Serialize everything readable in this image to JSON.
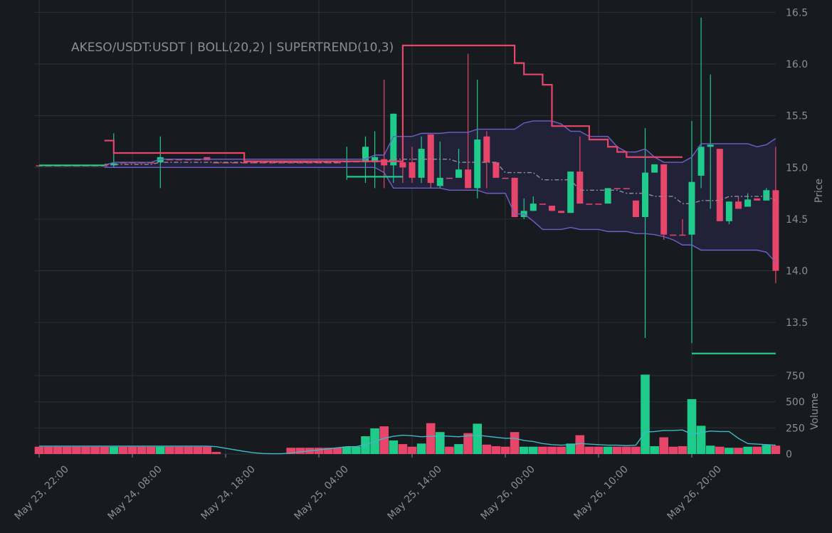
{
  "chart_data": {
    "type": "candlestick",
    "title": "AKESO/USDT:USDT | BOLL(20,2) | SUPERTREND(10,3)",
    "ylabel": "Price",
    "categories": [
      "May 23, 22:00",
      null,
      null,
      null,
      null,
      null,
      null,
      null,
      null,
      null,
      "May 24, 08:00",
      null,
      null,
      null,
      null,
      null,
      null,
      null,
      null,
      null,
      "May 24, 18:00",
      null,
      null,
      null,
      null,
      null,
      null,
      null,
      null,
      null,
      "May 25, 04:00",
      null,
      null,
      null,
      null,
      null,
      null,
      null,
      null,
      null,
      "May 25, 14:00",
      null,
      null,
      null,
      null,
      null,
      null,
      null,
      null,
      null,
      "May 26, 00:00",
      null,
      null,
      null,
      null,
      null,
      null,
      null,
      null,
      null,
      "May 26, 10:00",
      null,
      null,
      null,
      null,
      null,
      null,
      null,
      null,
      null,
      "May 26, 20:00",
      null,
      null,
      null,
      null,
      null,
      null,
      null,
      null,
      null
    ],
    "open": [
      15.02,
      15.02,
      15.02,
      15.02,
      15.02,
      15.02,
      15.02,
      15.02,
      15.02,
      15.05,
      15.05,
      15.05,
      15.05,
      15.05,
      15.08,
      15.08,
      15.08,
      15.08,
      15.1,
      15.05,
      15.05,
      15.05,
      15.05,
      15.05,
      15.05,
      15.05,
      15.05,
      15.05,
      15.05,
      15.05,
      15.05,
      15.05,
      15.05,
      15.05,
      15.05,
      15.05,
      15.05,
      15.08,
      15.02,
      15.05,
      15.05,
      14.9,
      15.32,
      14.82,
      14.9,
      14.9,
      14.98,
      14.8,
      15.3,
      15.05,
      14.9,
      14.9,
      14.52,
      14.58,
      14.65,
      14.63,
      14.58,
      14.56,
      14.96,
      14.65,
      14.65,
      14.65,
      14.8,
      14.8,
      14.68,
      14.52,
      14.95,
      15.03,
      14.35,
      14.35,
      14.35,
      14.92,
      15.2,
      15.18,
      14.48,
      14.67,
      14.62,
      14.7,
      14.68,
      14.78
    ],
    "high": [
      15.02,
      15.02,
      15.02,
      15.02,
      15.02,
      15.02,
      15.02,
      15.02,
      15.33,
      15.05,
      15.05,
      15.05,
      15.05,
      15.3,
      15.08,
      15.08,
      15.08,
      15.08,
      15.1,
      15.05,
      15.05,
      15.05,
      15.05,
      15.05,
      15.05,
      15.05,
      15.05,
      15.05,
      15.05,
      15.05,
      15.05,
      15.05,
      15.05,
      15.2,
      15.06,
      15.3,
      15.35,
      15.85,
      15.52,
      15.35,
      15.2,
      15.3,
      15.32,
      15.25,
      14.9,
      15.18,
      16.1,
      15.85,
      15.35,
      15.05,
      14.9,
      14.9,
      14.7,
      14.72,
      14.65,
      14.63,
      14.58,
      14.96,
      15.3,
      14.65,
      14.65,
      14.8,
      14.8,
      14.8,
      14.68,
      15.38,
      15.03,
      15.03,
      14.35,
      14.5,
      15.45,
      16.45,
      15.9,
      15.18,
      14.67,
      14.72,
      14.75,
      14.7,
      14.8,
      15.2
    ],
    "low": [
      15.02,
      15.02,
      15.02,
      15.02,
      15.02,
      15.02,
      15.02,
      15.02,
      15.0,
      15.05,
      15.05,
      15.05,
      15.05,
      14.8,
      15.08,
      15.08,
      15.08,
      15.08,
      15.07,
      15.05,
      15.05,
      15.05,
      15.05,
      15.05,
      15.05,
      15.05,
      15.05,
      15.05,
      15.05,
      15.05,
      15.05,
      15.05,
      15.05,
      14.88,
      15.05,
      14.85,
      14.8,
      14.8,
      14.85,
      14.85,
      14.85,
      14.85,
      14.8,
      14.8,
      14.9,
      14.9,
      14.8,
      14.7,
      14.8,
      14.9,
      14.9,
      14.52,
      14.5,
      14.58,
      14.65,
      14.58,
      14.56,
      14.56,
      14.65,
      14.65,
      14.65,
      14.65,
      14.8,
      14.8,
      14.52,
      13.35,
      14.95,
      14.3,
      14.34,
      14.35,
      13.3,
      14.8,
      14.6,
      14.48,
      14.45,
      14.6,
      14.62,
      14.68,
      14.68,
      13.88
    ],
    "close": [
      15.02,
      15.02,
      15.02,
      15.02,
      15.02,
      15.02,
      15.02,
      15.02,
      15.04,
      15.05,
      15.05,
      15.05,
      15.05,
      15.1,
      15.08,
      15.08,
      15.08,
      15.08,
      15.07,
      15.05,
      15.05,
      15.05,
      15.05,
      15.05,
      15.05,
      15.05,
      15.05,
      15.05,
      15.05,
      15.05,
      15.05,
      15.05,
      15.05,
      15.06,
      15.06,
      15.2,
      15.1,
      15.02,
      15.52,
      15.0,
      14.9,
      15.18,
      14.85,
      14.9,
      14.9,
      14.98,
      14.8,
      15.27,
      15.05,
      14.9,
      14.9,
      14.52,
      14.58,
      14.65,
      14.65,
      14.58,
      14.56,
      14.96,
      14.65,
      14.65,
      14.65,
      14.8,
      14.8,
      14.8,
      14.52,
      14.95,
      15.03,
      14.35,
      14.34,
      14.35,
      14.86,
      15.2,
      15.22,
      14.48,
      14.67,
      14.6,
      14.69,
      14.68,
      14.78,
      14.0
    ],
    "up_color": "#1ecb8b",
    "down_color": "#e8456a",
    "lines": [
      {
        "color": "#6f5fc8",
        "style": "solid",
        "values": [
          null,
          null,
          null,
          null,
          null,
          null,
          null,
          15.02,
          15.05,
          15.05,
          15.05,
          15.05,
          15.05,
          15.08,
          15.08,
          15.08,
          15.08,
          15.08,
          15.08,
          15.08,
          15.08,
          15.08,
          15.08,
          15.08,
          15.08,
          15.08,
          15.08,
          15.08,
          15.08,
          15.08,
          15.08,
          15.08,
          15.08,
          15.08,
          15.08,
          15.08,
          15.12,
          15.12,
          15.3,
          15.3,
          15.3,
          15.33,
          15.33,
          15.33,
          15.34,
          15.34,
          15.34,
          15.37,
          15.37,
          15.37,
          15.37,
          15.37,
          15.43,
          15.45,
          15.45,
          15.45,
          15.42,
          15.35,
          15.35,
          15.3,
          15.3,
          15.3,
          15.2,
          15.15,
          15.15,
          15.18,
          15.1,
          15.05,
          15.05,
          15.05,
          15.1,
          15.23,
          15.23,
          15.23,
          15.23,
          15.23,
          15.23,
          15.2,
          15.22,
          15.28
        ]
      },
      {
        "color": "#8d8f9c",
        "style": "dash",
        "values": [
          null,
          null,
          null,
          null,
          null,
          null,
          null,
          15.03,
          15.03,
          15.03,
          15.03,
          15.03,
          15.03,
          15.05,
          15.05,
          15.05,
          15.05,
          15.05,
          15.05,
          15.05,
          15.05,
          15.05,
          15.05,
          15.05,
          15.05,
          15.05,
          15.05,
          15.05,
          15.05,
          15.05,
          15.05,
          15.05,
          15.05,
          15.06,
          15.06,
          15.06,
          15.06,
          15.06,
          15.08,
          15.08,
          15.08,
          15.08,
          15.08,
          15.08,
          15.08,
          15.05,
          15.05,
          15.05,
          15.05,
          15.05,
          14.95,
          14.95,
          14.95,
          14.95,
          14.88,
          14.88,
          14.88,
          14.88,
          14.78,
          14.78,
          14.78,
          14.78,
          14.78,
          14.75,
          14.75,
          14.75,
          14.72,
          14.72,
          14.72,
          14.65,
          14.65,
          14.68,
          14.68,
          14.68,
          14.72,
          14.72,
          14.72,
          14.72,
          14.72,
          14.68
        ]
      },
      {
        "color": "#6f5fc8",
        "style": "solid",
        "values": [
          null,
          null,
          null,
          null,
          null,
          null,
          null,
          15.0,
          15.0,
          15.0,
          15.0,
          15.0,
          15.0,
          15.0,
          15.0,
          15.0,
          15.0,
          15.0,
          15.0,
          15.0,
          15.0,
          15.0,
          15.0,
          15.0,
          15.0,
          15.0,
          15.0,
          15.0,
          15.0,
          15.0,
          15.0,
          15.0,
          15.0,
          15.0,
          15.0,
          15.0,
          15.0,
          14.95,
          14.8,
          14.8,
          14.8,
          14.8,
          14.8,
          14.8,
          14.78,
          14.78,
          14.78,
          14.78,
          14.75,
          14.75,
          14.75,
          14.55,
          14.55,
          14.48,
          14.4,
          14.4,
          14.4,
          14.42,
          14.4,
          14.4,
          14.4,
          14.38,
          14.38,
          14.38,
          14.36,
          14.36,
          14.35,
          14.33,
          14.3,
          14.25,
          14.25,
          14.2,
          14.2,
          14.2,
          14.2,
          14.2,
          14.2,
          14.2,
          14.18,
          14.08
        ]
      },
      {
        "color": "#1ecb8b",
        "style": "step",
        "values": [
          15.02,
          15.02,
          15.02,
          15.02,
          15.02,
          15.02,
          15.02,
          15.02,
          null,
          null,
          null,
          null,
          null,
          null,
          null,
          null,
          null,
          null,
          null,
          null,
          null,
          null,
          null,
          null,
          null,
          null,
          null,
          null,
          null,
          null,
          null,
          null,
          null,
          14.91,
          14.91,
          14.91,
          14.91,
          14.91,
          14.91,
          14.91,
          null,
          null,
          null,
          null,
          null,
          null,
          null,
          null,
          null,
          null,
          null,
          null,
          null,
          null,
          null,
          null,
          null,
          null,
          null,
          null,
          null,
          null,
          null,
          null,
          null,
          null,
          null,
          null,
          null,
          null,
          13.2,
          13.2,
          13.2,
          13.2,
          13.2,
          13.2,
          13.2,
          13.2,
          13.2,
          13.2
        ]
      },
      {
        "color": "#e8456a",
        "style": "step",
        "values": [
          null,
          null,
          null,
          null,
          null,
          null,
          null,
          15.26,
          15.14,
          15.14,
          15.14,
          15.14,
          15.14,
          15.14,
          15.14,
          15.14,
          15.14,
          15.14,
          15.14,
          15.14,
          15.14,
          15.14,
          15.06,
          15.06,
          15.06,
          15.06,
          15.06,
          15.06,
          15.06,
          15.06,
          15.06,
          15.06,
          15.06,
          15.06,
          15.06,
          15.06,
          15.06,
          15.06,
          15.06,
          16.18,
          16.18,
          16.18,
          16.18,
          16.18,
          16.18,
          16.18,
          16.18,
          16.18,
          16.18,
          16.18,
          16.18,
          16.01,
          15.9,
          15.9,
          15.8,
          15.4,
          15.4,
          15.4,
          15.4,
          15.27,
          15.27,
          15.2,
          15.15,
          15.1,
          15.1,
          15.1,
          15.1,
          15.1,
          15.1,
          15.1,
          null,
          null,
          null,
          null,
          null,
          null,
          null,
          null,
          null,
          null
        ]
      }
    ],
    "band_fill": "#22233a",
    "ylim": [
      13.04,
      16.62
    ],
    "yticks": [
      {
        "value": 13.5,
        "label": "13.5"
      },
      {
        "value": 14,
        "label": "14.0"
      },
      14.5,
      {
        "value": 15,
        "label": "15.0"
      },
      15.5,
      {
        "value": 16,
        "label": "16.0"
      },
      16.5
    ],
    "grid": true,
    "volume": {
      "ylabel": "Volume",
      "ylim": [
        0,
        790
      ],
      "yticks": [
        0,
        250,
        500,
        750
      ],
      "ma_color": "#3fb9c9",
      "values": [
        70,
        70,
        70,
        70,
        70,
        70,
        70,
        70,
        70,
        70,
        70,
        70,
        70,
        70,
        70,
        70,
        70,
        70,
        70,
        20,
        0,
        0,
        0,
        0,
        0,
        0,
        0,
        60,
        60,
        60,
        60,
        60,
        60,
        70,
        70,
        170,
        245,
        265,
        130,
        95,
        70,
        100,
        295,
        210,
        70,
        95,
        200,
        290,
        90,
        75,
        70,
        210,
        70,
        70,
        70,
        70,
        70,
        100,
        180,
        70,
        70,
        70,
        70,
        70,
        70,
        760,
        75,
        160,
        70,
        75,
        525,
        270,
        80,
        70,
        60,
        60,
        70,
        70,
        85,
        80
      ],
      "ma": [
        75,
        75,
        75,
        75,
        75,
        75,
        75,
        75,
        75,
        75,
        75,
        75,
        75,
        75,
        75,
        75,
        75,
        75,
        75,
        70,
        55,
        40,
        25,
        12,
        5,
        3,
        3,
        10,
        20,
        30,
        40,
        50,
        60,
        70,
        70,
        90,
        120,
        150,
        170,
        180,
        175,
        165,
        170,
        175,
        170,
        165,
        175,
        180,
        170,
        160,
        150,
        150,
        130,
        120,
        100,
        90,
        85,
        90,
        100,
        95,
        90,
        85,
        85,
        80,
        85,
        210,
        215,
        225,
        225,
        230,
        190,
        205,
        220,
        215,
        215,
        150,
        100,
        95,
        90,
        85
      ]
    }
  }
}
